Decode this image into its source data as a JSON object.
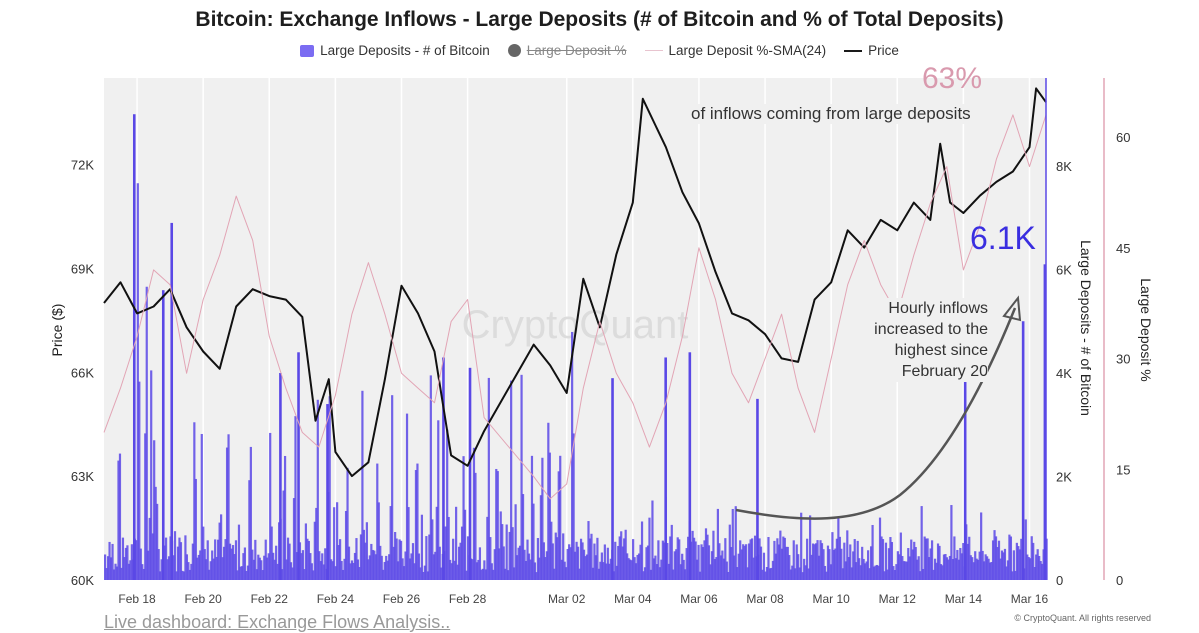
{
  "title": "Bitcoin: Exchange Inflows - Large Deposits (# of Bitcoin and % of Total Deposits)",
  "legend": [
    {
      "label": "Large Deposits - # of Bitcoin",
      "swatch": "bar",
      "color": "#7b6cf2",
      "disabled": false
    },
    {
      "label": "Large Deposit %",
      "swatch": "dot",
      "color": "#666666",
      "disabled": true
    },
    {
      "label": "Large Deposit %-SMA(24)",
      "swatch": "line",
      "color": "#e8c4cf",
      "disabled": false
    },
    {
      "label": "Price",
      "swatch": "line-bold",
      "color": "#1a1a1a",
      "disabled": false
    }
  ],
  "annotations": {
    "pct": "63%",
    "pct_sub": "of inflows coming from large deposits",
    "btc": "6.1K",
    "hourly": "Hourly inflows increased to the highest since February 20"
  },
  "watermark": "CryptoQuant",
  "footer": "Live dashboard: Exchange Flows Analysis..",
  "copyright": "© CryptoQuant. All rights reserved",
  "colors": {
    "bars": "#5a48e6",
    "price": "#111111",
    "sma": "#e2a5b5",
    "plot_bg": "#f0f0f0"
  },
  "chart_data": {
    "type": "line",
    "x_ticks": [
      "Feb 18",
      "Feb 20",
      "Feb 22",
      "Feb 24",
      "Feb 26",
      "Feb 28",
      "Mar 02",
      "Mar 04",
      "Mar 06",
      "Mar 08",
      "Mar 10",
      "Mar 12",
      "Mar 14",
      "Mar 16"
    ],
    "x_range": [
      "Feb 17",
      "Mar 16.5"
    ],
    "axes": {
      "price": {
        "label": "Price ($)",
        "ticks": [
          "60K",
          "63K",
          "66K",
          "69K",
          "72K"
        ],
        "tick_values": [
          60000,
          63000,
          66000,
          69000,
          72000
        ],
        "range": [
          60000,
          74500
        ]
      },
      "btc": {
        "label": "Large Deposits - # of Bitcoin",
        "ticks": [
          "0",
          "2K",
          "4K",
          "6K",
          "8K"
        ],
        "tick_values": [
          0,
          2000,
          4000,
          6000,
          8000
        ],
        "range": [
          0,
          9700
        ]
      },
      "pct": {
        "label": "Large Deposit %",
        "ticks": [
          "0",
          "15",
          "30",
          "45",
          "60"
        ],
        "tick_values": [
          0,
          15,
          30,
          45,
          60
        ],
        "range": [
          0,
          68
        ]
      }
    },
    "series": [
      {
        "name": "Price",
        "axis": "price",
        "points": [
          [
            "Feb 17",
            68000
          ],
          [
            "Feb 17.5",
            68600
          ],
          [
            "Feb 18",
            67700
          ],
          [
            "Feb 18.5",
            67900
          ],
          [
            "Feb 19",
            68400
          ],
          [
            "Feb 19.5",
            67300
          ],
          [
            "Feb 20",
            66600
          ],
          [
            "Feb 20.5",
            66100
          ],
          [
            "Feb 21",
            67900
          ],
          [
            "Feb 21.5",
            68400
          ],
          [
            "Feb 22",
            68200
          ],
          [
            "Feb 22.5",
            68100
          ],
          [
            "Feb 23",
            67600
          ],
          [
            "Feb 23.4",
            64600
          ],
          [
            "Feb 23.8",
            65800
          ],
          [
            "Feb 24",
            63700
          ],
          [
            "Feb 24.5",
            63000
          ],
          [
            "Feb 25",
            63400
          ],
          [
            "Feb 25.5",
            65800
          ],
          [
            "Feb 26",
            68500
          ],
          [
            "Feb 26.5",
            67700
          ],
          [
            "Feb 27",
            66600
          ],
          [
            "Feb 27.5",
            63600
          ],
          [
            "Feb 28",
            63300
          ],
          [
            "Feb 28.5",
            64300
          ],
          [
            "Mar 01",
            66800
          ],
          [
            "Mar 01.5",
            66200
          ],
          [
            "Mar 02",
            65400
          ],
          [
            "Mar 02.5",
            68700
          ],
          [
            "Mar 03",
            67300
          ],
          [
            "Mar 03.5",
            69400
          ],
          [
            "Mar 04",
            70900
          ],
          [
            "Mar 04.3",
            73900
          ],
          [
            "Mar 04.7",
            73100
          ],
          [
            "Mar 05",
            72500
          ],
          [
            "Mar 05.5",
            71200
          ],
          [
            "Mar 06",
            70300
          ],
          [
            "Mar 06.5",
            68900
          ],
          [
            "Mar 07",
            67700
          ],
          [
            "Mar 07.5",
            67500
          ],
          [
            "Mar 08",
            67100
          ],
          [
            "Mar 08.5",
            66400
          ],
          [
            "Mar 09",
            66300
          ],
          [
            "Mar 09.5",
            68100
          ],
          [
            "Mar 10",
            68600
          ],
          [
            "Mar 10.5",
            70100
          ],
          [
            "Mar 11",
            69600
          ],
          [
            "Mar 11.5",
            70400
          ],
          [
            "Mar 12",
            70100
          ],
          [
            "Mar 12.5",
            70900
          ],
          [
            "Mar 13",
            70400
          ],
          [
            "Mar 13.3",
            72600
          ],
          [
            "Mar 13.6",
            70900
          ],
          [
            "Mar 14",
            70600
          ],
          [
            "Mar 14.5",
            71100
          ],
          [
            "Mar 15",
            71500
          ],
          [
            "Mar 15.5",
            71800
          ],
          [
            "Mar 16",
            72500
          ],
          [
            "Mar 16.2",
            74200
          ],
          [
            "Mar 16.5",
            73800
          ]
        ]
      },
      {
        "name": "Large Deposit %-SMA(24)",
        "axis": "pct",
        "points": [
          [
            "Feb 17",
            20
          ],
          [
            "Feb 17.5",
            26
          ],
          [
            "Feb 18",
            33
          ],
          [
            "Feb 18.5",
            42
          ],
          [
            "Feb 19",
            40
          ],
          [
            "Feb 19.5",
            28
          ],
          [
            "Feb 20",
            38
          ],
          [
            "Feb 20.5",
            44
          ],
          [
            "Feb 21",
            52
          ],
          [
            "Feb 21.5",
            46
          ],
          [
            "Feb 22",
            33
          ],
          [
            "Feb 22.5",
            26
          ],
          [
            "Feb 23",
            20
          ],
          [
            "Feb 23.5",
            18
          ],
          [
            "Feb 24",
            25
          ],
          [
            "Feb 24.5",
            36
          ],
          [
            "Feb 25",
            43
          ],
          [
            "Feb 25.5",
            36
          ],
          [
            "Feb 26",
            28
          ],
          [
            "Feb 26.5",
            26
          ],
          [
            "Feb 27",
            24
          ],
          [
            "Feb 27.5",
            35
          ],
          [
            "Feb 28",
            38
          ],
          [
            "Feb 28.5",
            22
          ],
          [
            "Mar 01",
            14
          ],
          [
            "Mar 01.5",
            11
          ],
          [
            "Mar 02",
            13
          ],
          [
            "Mar 02.5",
            26
          ],
          [
            "Mar 03",
            35
          ],
          [
            "Mar 03.5",
            28
          ],
          [
            "Mar 04",
            24
          ],
          [
            "Mar 04.5",
            18
          ],
          [
            "Mar 05",
            24
          ],
          [
            "Mar 05.5",
            33
          ],
          [
            "Mar 06",
            45
          ],
          [
            "Mar 06.5",
            38
          ],
          [
            "Mar 07",
            28
          ],
          [
            "Mar 07.5",
            24
          ],
          [
            "Mar 08",
            30
          ],
          [
            "Mar 08.5",
            36
          ],
          [
            "Mar 09",
            26
          ],
          [
            "Mar 09.5",
            20
          ],
          [
            "Mar 10",
            30
          ],
          [
            "Mar 10.5",
            40
          ],
          [
            "Mar 11",
            46
          ],
          [
            "Mar 11.5",
            40
          ],
          [
            "Mar 12",
            36
          ],
          [
            "Mar 12.5",
            44
          ],
          [
            "Mar 13",
            51
          ],
          [
            "Mar 13.5",
            56
          ],
          [
            "Mar 14",
            42
          ],
          [
            "Mar 14.5",
            48
          ],
          [
            "Mar 15",
            57
          ],
          [
            "Mar 15.5",
            63
          ],
          [
            "Mar 16",
            56
          ],
          [
            "Mar 16.5",
            63
          ]
        ]
      }
    ]
  }
}
